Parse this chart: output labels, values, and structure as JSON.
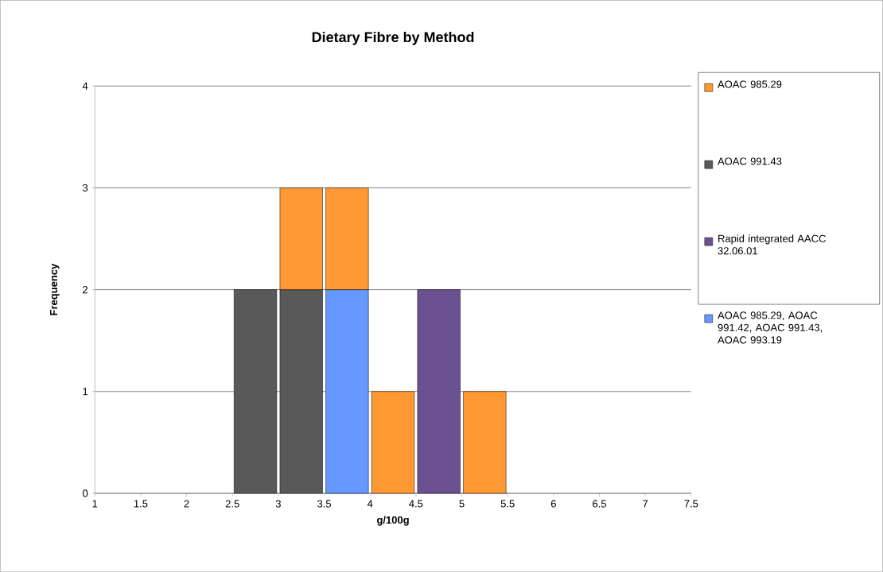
{
  "chart_data": {
    "type": "bar",
    "title": "Dietary Fibre by Method",
    "xlabel": "g/100g",
    "ylabel": "Frequency",
    "x": [
      2.75,
      3.25,
      3.75,
      4.25,
      4.75,
      5.25
    ],
    "stacked": true,
    "series": [
      {
        "name": "AOAC 985.29, AOAC 991.42, AOAC 991.43, AOAC 993.19",
        "color": "#6699ff",
        "values": [
          null,
          null,
          2,
          null,
          null,
          null
        ]
      },
      {
        "name": "Rapid integrated AACC 32.06.01",
        "color": "#6b5192",
        "values": [
          null,
          null,
          null,
          null,
          2,
          null
        ]
      },
      {
        "name": "AOAC 991.43",
        "color": "#595959",
        "values": [
          2,
          2,
          null,
          null,
          null,
          null
        ]
      },
      {
        "name": "AOAC 985.29",
        "color": "#ff9933",
        "values": [
          null,
          1,
          1,
          1,
          null,
          1
        ]
      }
    ],
    "xlim": [
      1,
      7.5
    ],
    "ylim": [
      0,
      4
    ],
    "xticks": [
      1,
      1.5,
      2,
      2.5,
      3,
      3.5,
      4,
      4.5,
      5,
      5.5,
      6,
      6.5,
      7,
      7.5
    ],
    "yticks": [
      0,
      1,
      2,
      3,
      4
    ],
    "grid": "y",
    "legend": "right"
  }
}
